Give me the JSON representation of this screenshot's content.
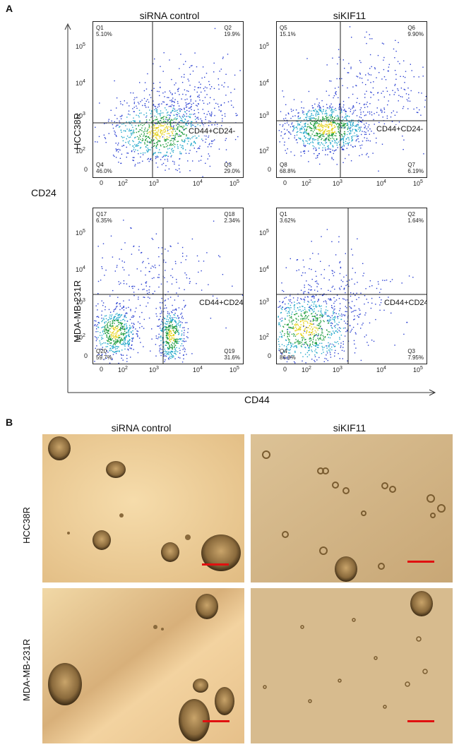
{
  "panel_a": {
    "letter": "A",
    "col_titles": [
      "siRNA control",
      "siKIF11"
    ],
    "row_labels": [
      "HCC38R",
      "MDA-MB-231R"
    ],
    "y_axis_title": "CD24",
    "x_axis_title": "CD44",
    "gate_label": "CD44+CD24-",
    "x_ticks": [
      "0",
      "10",
      "10",
      "10",
      "10"
    ],
    "x_tick_exp": [
      "",
      "2",
      "3",
      "4",
      "5"
    ],
    "y_ticks": [
      "10",
      "10",
      "10",
      "10"
    ],
    "y_tick_exp": [
      "5",
      "4",
      "3",
      "2"
    ],
    "y_zero": "0",
    "plots": [
      {
        "quads": [
          {
            "name": "Q1",
            "pct": "5.10%"
          },
          {
            "name": "Q2",
            "pct": "19.9%"
          },
          {
            "name": "Q3",
            "pct": "29.0%"
          },
          {
            "name": "Q4",
            "pct": "46.0%"
          }
        ]
      },
      {
        "quads": [
          {
            "name": "Q5",
            "pct": "15.1%"
          },
          {
            "name": "Q6",
            "pct": "9.90%"
          },
          {
            "name": "Q7",
            "pct": "6.19%"
          },
          {
            "name": "Q8",
            "pct": "68.8%"
          }
        ]
      },
      {
        "quads": [
          {
            "name": "Q17",
            "pct": "6.35%"
          },
          {
            "name": "Q18",
            "pct": "2.34%"
          },
          {
            "name": "Q19",
            "pct": "31.6%"
          },
          {
            "name": "Q20",
            "pct": "59.7%"
          }
        ]
      },
      {
        "quads": [
          {
            "name": "Q1",
            "pct": "3.62%"
          },
          {
            "name": "Q2",
            "pct": "1.64%"
          },
          {
            "name": "Q3",
            "pct": "7.95%"
          },
          {
            "name": "Q4",
            "pct": "86.8%"
          }
        ]
      }
    ]
  },
  "panel_b": {
    "letter": "B",
    "col_titles": [
      "siRNA control",
      "siKIF11"
    ],
    "row_labels": [
      "HCC38R",
      "MDA-MB-231R"
    ],
    "scale_bar_color": "#e01010"
  }
}
